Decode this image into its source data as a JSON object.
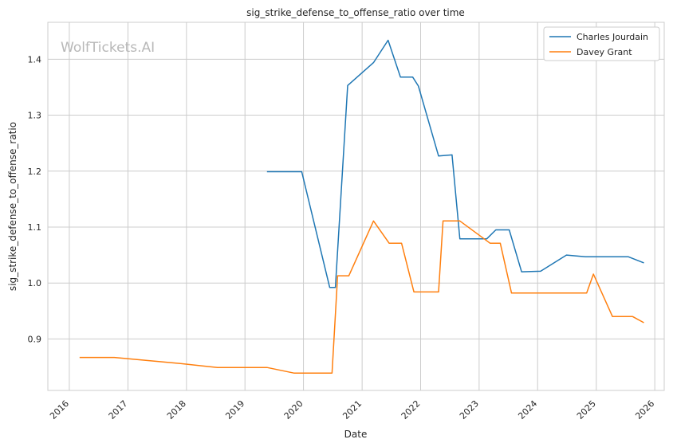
{
  "watermark": "WolfTickets.AI",
  "chart_data": {
    "type": "line",
    "title": "sig_strike_defense_to_offense_ratio over time",
    "xlabel": "Date",
    "ylabel": "sig_strike_defense_to_offense_ratio",
    "x_ticks": [
      "2016",
      "2017",
      "2018",
      "2019",
      "2020",
      "2021",
      "2022",
      "2023",
      "2024",
      "2025",
      "2026"
    ],
    "y_ticks": [
      "0.9",
      "1.0",
      "1.1",
      "1.2",
      "1.3",
      "1.4"
    ],
    "xlim": [
      "2015-08-20",
      "2026-03-01"
    ],
    "ylim": [
      0.808,
      1.466
    ],
    "grid": true,
    "legend_position": "top-right",
    "series": [
      {
        "name": "Charles Jourdain",
        "color": "#1f77b4",
        "points": [
          [
            "2019-05-18",
            1.199
          ],
          [
            "2019-12-21",
            1.199
          ],
          [
            "2020-06-13",
            0.992
          ],
          [
            "2020-07-18",
            0.992
          ],
          [
            "2020-10-03",
            1.353
          ],
          [
            "2021-03-13",
            1.394
          ],
          [
            "2021-06-12",
            1.434
          ],
          [
            "2021-08-28",
            1.368
          ],
          [
            "2021-11-13",
            1.368
          ],
          [
            "2021-12-18",
            1.352
          ],
          [
            "2022-04-23",
            1.227
          ],
          [
            "2022-07-16",
            1.229
          ],
          [
            "2022-09-03",
            1.079
          ],
          [
            "2023-02-18",
            1.079
          ],
          [
            "2023-04-15",
            1.095
          ],
          [
            "2023-07-08",
            1.095
          ],
          [
            "2023-09-23",
            1.02
          ],
          [
            "2024-01-20",
            1.021
          ],
          [
            "2024-06-29",
            1.05
          ],
          [
            "2024-10-26",
            1.047
          ],
          [
            "2025-07-19",
            1.047
          ],
          [
            "2025-10-25",
            1.036
          ]
        ]
      },
      {
        "name": "Davey Grant",
        "color": "#ff7f0e",
        "points": [
          [
            "2016-03-05",
            0.867
          ],
          [
            "2016-10-08",
            0.867
          ],
          [
            "2017-11-25",
            0.856
          ],
          [
            "2018-07-14",
            0.849
          ],
          [
            "2019-05-18",
            0.849
          ],
          [
            "2019-11-02",
            0.839
          ],
          [
            "2020-06-27",
            0.839
          ],
          [
            "2020-08-01",
            1.013
          ],
          [
            "2020-10-10",
            1.013
          ],
          [
            "2021-03-13",
            1.111
          ],
          [
            "2021-06-19",
            1.071
          ],
          [
            "2021-09-04",
            1.071
          ],
          [
            "2021-11-20",
            0.984
          ],
          [
            "2022-04-23",
            0.984
          ],
          [
            "2022-05-21",
            1.111
          ],
          [
            "2022-09-03",
            1.111
          ],
          [
            "2023-03-11",
            1.071
          ],
          [
            "2023-05-13",
            1.071
          ],
          [
            "2023-07-22",
            0.982
          ],
          [
            "2024-11-02",
            0.982
          ],
          [
            "2024-12-14",
            1.016
          ],
          [
            "2025-04-12",
            0.94
          ],
          [
            "2025-08-16",
            0.94
          ],
          [
            "2025-10-25",
            0.929
          ]
        ]
      }
    ]
  }
}
